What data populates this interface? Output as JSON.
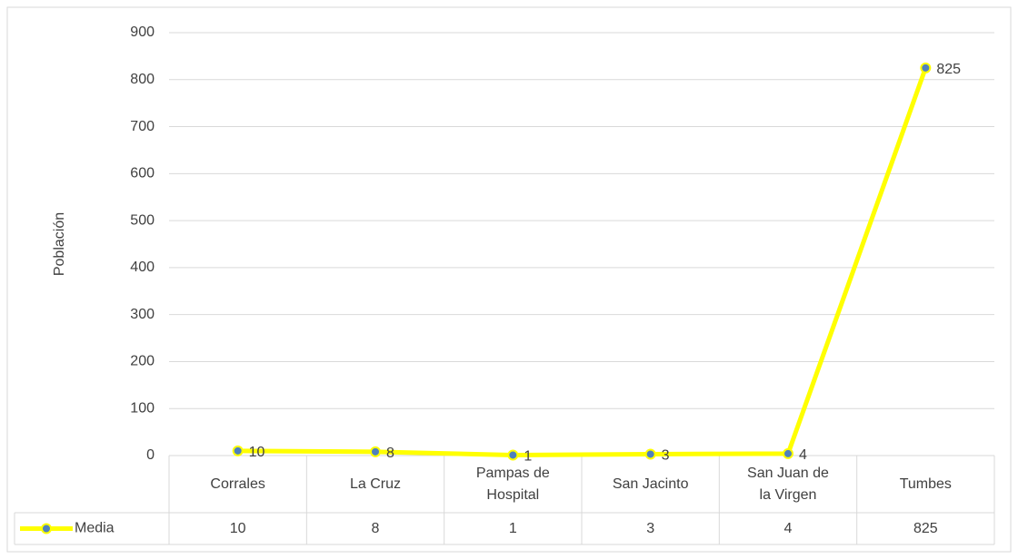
{
  "chart_data": {
    "type": "line",
    "y_label": "Población",
    "categories": [
      "Corrales",
      "La Cruz",
      "Pampas de Hospital",
      "San Jacinto",
      "San Juan de la Virgen",
      "Tumbes"
    ],
    "series": [
      {
        "name": "Media",
        "color": "#ffff00",
        "marker_color": "#4f81bd",
        "values": [
          10,
          8,
          1,
          3,
          4,
          825
        ]
      }
    ],
    "ylim": [
      0,
      900
    ],
    "yticks": [
      0,
      100,
      200,
      300,
      400,
      500,
      600,
      700,
      800,
      900
    ],
    "grid": true,
    "data_table": true
  }
}
